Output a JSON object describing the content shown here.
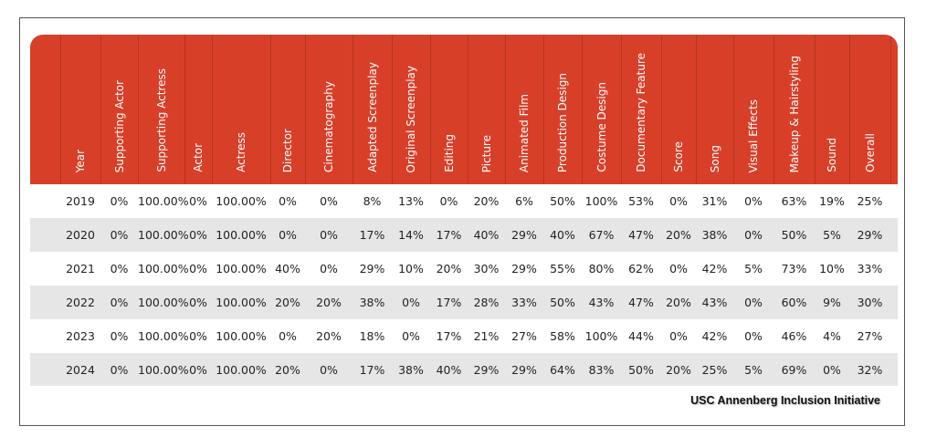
{
  "chart_data": {
    "type": "table",
    "columns": [
      "",
      "Year",
      "Supporting Actor",
      "Supporting Actress",
      "Actor",
      "Actress",
      "Director",
      "Cinematography",
      "Adapted Screenplay",
      "Original Screenplay",
      "Editing",
      "Picture",
      "Animated Film",
      "Production Design",
      "Costume Design",
      "Documentary Feature",
      "Score",
      "Song",
      "Visual Effects",
      "Makeup & Hairstyling",
      "Sound",
      "Overall",
      ""
    ],
    "rows": [
      [
        "",
        "2019",
        "0%",
        "100.00%",
        "0%",
        "100.00%",
        "0%",
        "0%",
        "8%",
        "13%",
        "0%",
        "20%",
        "6%",
        "50%",
        "100%",
        "53%",
        "0%",
        "31%",
        "0%",
        "63%",
        "19%",
        "25%",
        ""
      ],
      [
        "",
        "2020",
        "0%",
        "100.00%",
        "0%",
        "100.00%",
        "0%",
        "0%",
        "17%",
        "14%",
        "17%",
        "40%",
        "29%",
        "40%",
        "67%",
        "47%",
        "20%",
        "38%",
        "0%",
        "50%",
        "5%",
        "29%",
        ""
      ],
      [
        "",
        "2021",
        "0%",
        "100.00%",
        "0%",
        "100.00%",
        "40%",
        "0%",
        "29%",
        "10%",
        "20%",
        "30%",
        "29%",
        "55%",
        "80%",
        "62%",
        "0%",
        "42%",
        "5%",
        "73%",
        "10%",
        "33%",
        ""
      ],
      [
        "",
        "2022",
        "0%",
        "100.00%",
        "0%",
        "100.00%",
        "20%",
        "20%",
        "38%",
        "0%",
        "17%",
        "28%",
        "33%",
        "50%",
        "43%",
        "47%",
        "20%",
        "43%",
        "0%",
        "60%",
        "9%",
        "30%",
        ""
      ],
      [
        "",
        "2023",
        "0%",
        "100.00%",
        "0%",
        "100.00%",
        "0%",
        "20%",
        "18%",
        "0%",
        "17%",
        "21%",
        "27%",
        "58%",
        "100%",
        "44%",
        "0%",
        "42%",
        "0%",
        "46%",
        "4%",
        "27%",
        ""
      ],
      [
        "",
        "2024",
        "0%",
        "100.00%",
        "0%",
        "100.00%",
        "20%",
        "0%",
        "17%",
        "38%",
        "40%",
        "29%",
        "29%",
        "64%",
        "83%",
        "50%",
        "20%",
        "25%",
        "5%",
        "69%",
        "0%",
        "32%",
        ""
      ]
    ],
    "header_color": "#d83f29",
    "row_colors": [
      "#ffffff",
      "#e6e6e6"
    ]
  },
  "credit": "USC Annenberg Inclusion Initiative"
}
